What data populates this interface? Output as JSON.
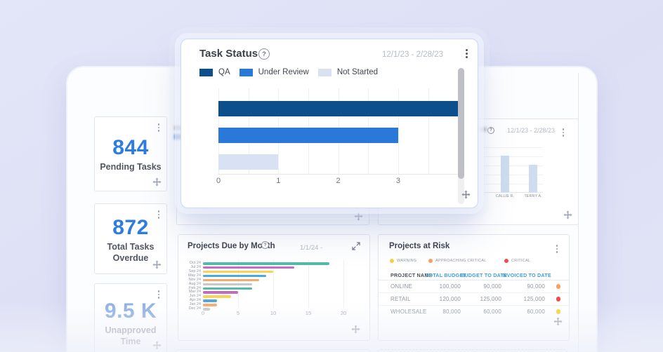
{
  "icons": {
    "help_glyph": "?"
  },
  "colors": {
    "stat_number": "#2e7ce0",
    "stat_number_muted": "#8db1e3",
    "column_header_link": "#3fa0dc",
    "background": "#dedff5"
  },
  "task_status_card": {
    "title": "Task Status",
    "date_range": "12/1/23 - 2/28/23",
    "legend": [
      {
        "label": "QA",
        "color": "#0d4e8c"
      },
      {
        "label": "Under Review",
        "color": "#2a79d9"
      },
      {
        "label": "Not Started",
        "color": "#d8e2f3"
      }
    ],
    "chart_data": {
      "type": "bar",
      "orientation": "horizontal",
      "categories": [
        "QA",
        "Under Review",
        "Not Started"
      ],
      "values": [
        4,
        3,
        1
      ],
      "xticks": [
        0,
        1,
        2,
        3
      ],
      "xlim": [
        0,
        4.05
      ],
      "grid": true
    }
  },
  "stat_cards": [
    {
      "value": "844",
      "label": "Pending Tasks"
    },
    {
      "value": "872",
      "label": "Total Tasks Overdue"
    },
    {
      "value": "9.5 K",
      "label": "Unapproved Time"
    }
  ],
  "team_tasks_card": {
    "date_range": "12/1/23 - 2/28/23",
    "chart_data": {
      "type": "bar",
      "orientation": "vertical",
      "categories": [
        "CALLIE R.",
        "TERRY A."
      ],
      "values": [
        4,
        3
      ],
      "bar_color": "#cedcf1",
      "grid": true
    }
  },
  "projects_due_card": {
    "title": "Projects Due by Month",
    "date_label": "1/1/24 -",
    "chart_data": {
      "type": "bar",
      "orientation": "horizontal",
      "xticks": [
        0,
        5,
        10,
        15,
        20
      ],
      "xlim": [
        0,
        21
      ],
      "rows": [
        {
          "month": "Oct 24",
          "value": 18,
          "color": "#53bba6"
        },
        {
          "month": "Jul 24",
          "value": 13,
          "color": "#c869c3"
        },
        {
          "month": "Sep 24",
          "value": 10,
          "color": "#f8d355"
        },
        {
          "month": "May 24",
          "value": 9,
          "color": "#4aa9e0"
        },
        {
          "month": "Nov 24",
          "value": 8,
          "color": "#f8a96b"
        },
        {
          "month": "Aug 24",
          "value": 7,
          "color": "#c6c8ca"
        },
        {
          "month": "Feb 24",
          "value": 7,
          "color": "#53bba6"
        },
        {
          "month": "Mar 24",
          "value": 5,
          "color": "#c869c3"
        },
        {
          "month": "Jun 24",
          "value": 4,
          "color": "#f8d355"
        },
        {
          "month": "Apr 24",
          "value": 2,
          "color": "#4aa9e0"
        },
        {
          "month": "Jan 24",
          "value": 2,
          "color": "#f8a96b"
        },
        {
          "month": "Dec 24",
          "value": 1,
          "color": "#c6c8ca"
        }
      ]
    }
  },
  "projects_at_risk_card": {
    "title": "Projects at Risk",
    "legend": [
      {
        "label": "WARNING",
        "color": "#f5d23e"
      },
      {
        "label": "APPROACHING CRITICAL",
        "color": "#f7a163"
      },
      {
        "label": "CRITICAL",
        "color": "#f04c4c"
      }
    ],
    "table": {
      "headers": [
        "PROJECT NAME",
        "TOTAL BUDGET",
        "BUDGET TO DATE",
        "INVOICED TO DATE"
      ],
      "rows": [
        {
          "name": "ONLINE",
          "total_budget": "100,000",
          "budget_to_date": "90,000",
          "invoiced_to_date": "90,000",
          "status": "approaching-critical",
          "status_color": "#f7a163"
        },
        {
          "name": "RETAIL",
          "total_budget": "120,000",
          "budget_to_date": "125,000",
          "invoiced_to_date": "125,000",
          "status": "critical",
          "status_color": "#f04c4c"
        },
        {
          "name": "WHOLESALE",
          "total_budget": "80,000",
          "budget_to_date": "60,000",
          "invoiced_to_date": "60,000",
          "status": "warning",
          "status_color": "#f5d23e"
        }
      ]
    }
  }
}
